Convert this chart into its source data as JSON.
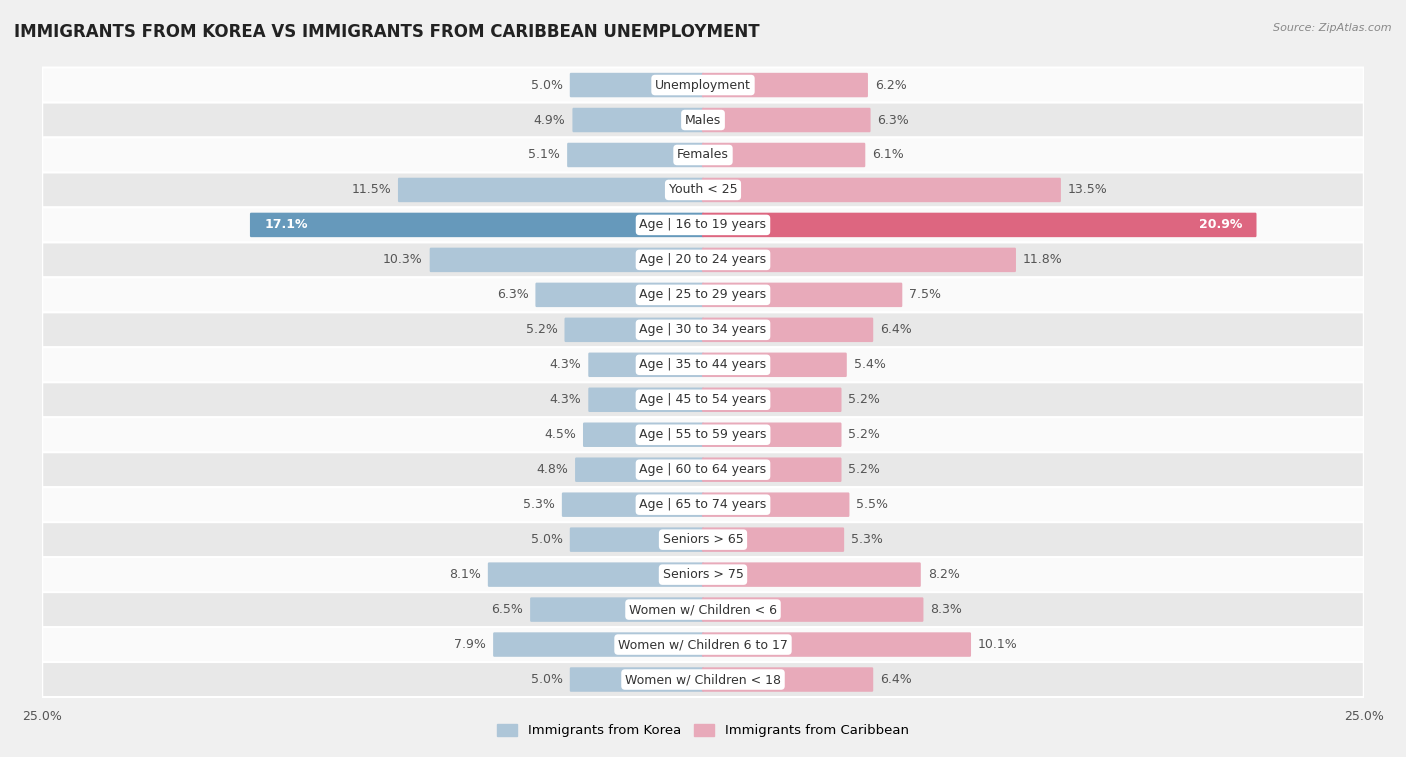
{
  "title": "IMMIGRANTS FROM KOREA VS IMMIGRANTS FROM CARIBBEAN UNEMPLOYMENT",
  "source": "Source: ZipAtlas.com",
  "categories": [
    "Unemployment",
    "Males",
    "Females",
    "Youth < 25",
    "Age | 16 to 19 years",
    "Age | 20 to 24 years",
    "Age | 25 to 29 years",
    "Age | 30 to 34 years",
    "Age | 35 to 44 years",
    "Age | 45 to 54 years",
    "Age | 55 to 59 years",
    "Age | 60 to 64 years",
    "Age | 65 to 74 years",
    "Seniors > 65",
    "Seniors > 75",
    "Women w/ Children < 6",
    "Women w/ Children 6 to 17",
    "Women w/ Children < 18"
  ],
  "korea_values": [
    5.0,
    4.9,
    5.1,
    11.5,
    17.1,
    10.3,
    6.3,
    5.2,
    4.3,
    4.3,
    4.5,
    4.8,
    5.3,
    5.0,
    8.1,
    6.5,
    7.9,
    5.0
  ],
  "caribbean_values": [
    6.2,
    6.3,
    6.1,
    13.5,
    20.9,
    11.8,
    7.5,
    6.4,
    5.4,
    5.2,
    5.2,
    5.2,
    5.5,
    5.3,
    8.2,
    8.3,
    10.1,
    6.4
  ],
  "korea_color": "#aec6d8",
  "caribbean_color": "#e8aaba",
  "korea_highlight_color": "#6699bb",
  "caribbean_highlight_color": "#dd6680",
  "axis_limit": 25.0,
  "background_color": "#f0f0f0",
  "row_color_odd": "#fafafa",
  "row_color_even": "#e8e8e8",
  "legend_korea": "Immigrants from Korea",
  "legend_caribbean": "Immigrants from Caribbean",
  "title_fontsize": 12,
  "label_fontsize": 9,
  "value_fontsize": 9,
  "highlight_rows": [
    4
  ],
  "special_korea_color": "#6699bb",
  "special_caribbean_color": "#dd6680"
}
